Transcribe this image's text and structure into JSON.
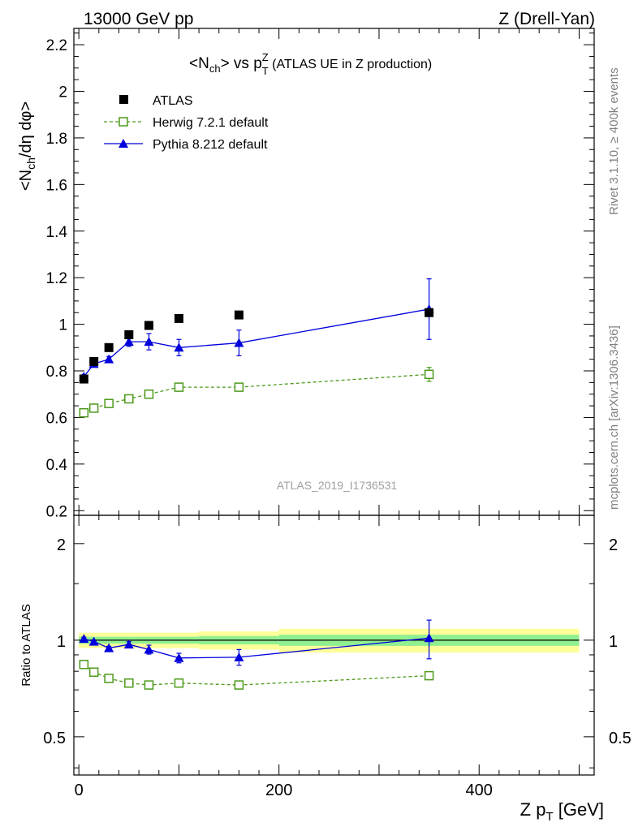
{
  "header": {
    "left": "13000 GeV pp",
    "right": "Z (Drell-Yan)"
  },
  "side": {
    "rivet": "Rivet 3.1.10, ≥ 400k events",
    "mcplots": "mcplots.cern.ch [arXiv:1306.3436]"
  },
  "colors": {
    "atlas": "#000000",
    "herwig": "#4d9a1a",
    "pythia": "#0000dd",
    "band_inner": "#90f090",
    "band_outer": "#ffff99"
  },
  "chart_data": {
    "type": "scatter",
    "title": "<N_ch> vs p_T^Z (ATLAS UE in Z production)",
    "title_parts": {
      "main": "<N",
      "sub1": "ch",
      "mid": "> vs p",
      "sup": "Z",
      "sub2": "T",
      "tail": " (ATLAS UE in Z production)"
    },
    "watermark": "ATLAS_2019_I1736531",
    "ylabel": "<N_ch/dη dφ>",
    "ylabel_parts": {
      "a": "<N",
      "sub": "ch",
      "b": "/dη dφ>"
    },
    "ratio_ylabel": "Ratio to ATLAS",
    "xlabel": "Z p_T [GeV]",
    "xlabel_parts": {
      "a": "Z p",
      "sub": "T",
      "b": " [GeV]"
    },
    "xlim": [
      -5,
      515
    ],
    "ylim": [
      0.18,
      2.27
    ],
    "ratio_ylim": [
      0.38,
      2.45
    ],
    "x_ticks": [
      0,
      200,
      400
    ],
    "x_tick_labels": [
      "0",
      "200",
      "400"
    ],
    "y_ticks": [
      0.2,
      0.4,
      0.6,
      0.8,
      1,
      1.2,
      1.4,
      1.6,
      1.8,
      2,
      2.2
    ],
    "y_tick_labels": [
      "0.2",
      "0.4",
      "0.6",
      "0.8",
      "1",
      "1.2",
      "1.4",
      "1.6",
      "1.8",
      "2",
      "2.2"
    ],
    "ratio_y_ticks": [
      0.5,
      1,
      2
    ],
    "ratio_y_tick_labels": [
      "0.5",
      "1",
      "2"
    ],
    "x": [
      5,
      15,
      30,
      50,
      70,
      100,
      160,
      350
    ],
    "x_bins": [
      [
        0,
        10
      ],
      [
        10,
        20
      ],
      [
        20,
        40
      ],
      [
        40,
        60
      ],
      [
        60,
        80
      ],
      [
        80,
        120
      ],
      [
        120,
        200
      ],
      [
        200,
        500
      ]
    ],
    "legend": [
      "ATLAS",
      "Herwig 7.2.1 default",
      "Pythia 8.212 default"
    ],
    "series": [
      {
        "name": "ATLAS",
        "values": [
          0.765,
          0.84,
          0.9,
          0.955,
          0.995,
          1.025,
          1.04,
          1.05
        ]
      },
      {
        "name": "Herwig 7.2.1 default",
        "values": [
          0.62,
          0.64,
          0.66,
          0.68,
          0.7,
          0.73,
          0.73,
          0.785
        ],
        "errors": [
          0.008,
          0.008,
          0.008,
          0.01,
          0.01,
          0.012,
          0.015,
          0.03
        ]
      },
      {
        "name": "Pythia 8.212 default",
        "values": [
          0.775,
          0.83,
          0.85,
          0.925,
          0.925,
          0.9,
          0.92,
          1.065
        ],
        "errors": [
          0.01,
          0.012,
          0.012,
          0.02,
          0.035,
          0.035,
          0.055,
          0.13
        ]
      }
    ],
    "ratio_series": [
      {
        "name": "Herwig 7.2.1 default",
        "values": [
          0.84,
          0.795,
          0.76,
          0.735,
          0.725,
          0.735,
          0.725,
          0.775
        ],
        "errors": [
          0.01,
          0.01,
          0.01,
          0.012,
          0.012,
          0.012,
          0.014,
          0.02
        ]
      },
      {
        "name": "Pythia 8.212 default",
        "values": [
          1.01,
          0.99,
          0.945,
          0.97,
          0.935,
          0.88,
          0.885,
          1.015
        ],
        "errors": [
          0.012,
          0.012,
          0.012,
          0.02,
          0.03,
          0.03,
          0.05,
          0.14
        ]
      }
    ],
    "ratio_bands": [
      {
        "x": [
          0,
          10
        ],
        "inner": 0.025,
        "outer": 0.055
      },
      {
        "x": [
          10,
          120
        ],
        "inner": 0.025,
        "outer": 0.055
      },
      {
        "x": [
          120,
          200
        ],
        "inner": 0.03,
        "outer": 0.065
      },
      {
        "x": [
          200,
          500
        ],
        "inner": 0.04,
        "outer": 0.085
      }
    ]
  }
}
